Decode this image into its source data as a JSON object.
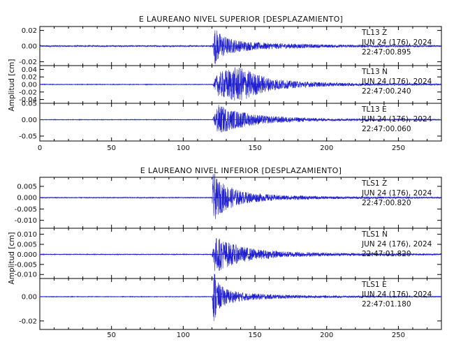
{
  "chart_data": [
    {
      "type": "line",
      "title": "E LAUREANO NIVEL SUPERIOR [DESPLAZAMIENTO]",
      "ylabel": "Amplitud [cm]",
      "xlabel": "",
      "xlim": [
        0,
        280
      ],
      "x_ticks": [
        "0",
        "50",
        "100",
        "150",
        "200",
        "250"
      ],
      "grid": false,
      "line_color": "#1f1fd0",
      "series": [
        {
          "name": "TL13 Z",
          "station": "TL13",
          "component": "Z",
          "date": "JUN 24 (176), 2024",
          "time": "22:47:00.895",
          "ylim": [
            -0.025,
            0.025
          ],
          "y_ticks": [
            "0.02",
            "0.00",
            "-0.02"
          ],
          "envelope": [
            [
              0,
              0.001
            ],
            [
              120.5,
              0.001
            ],
            [
              122,
              0.024
            ],
            [
              126,
              0.016
            ],
            [
              132,
              0.01
            ],
            [
              140,
              0.007
            ],
            [
              150,
              0.005
            ],
            [
              160,
              0.004
            ],
            [
              180,
              0.003
            ],
            [
              200,
              0.002
            ],
            [
              280,
              0.001
            ]
          ]
        },
        {
          "name": "TL13 N",
          "station": "TL13",
          "component": "N",
          "date": "JUN 24 (176), 2024",
          "time": "22:47:00.240",
          "ylim": [
            -0.05,
            0.05
          ],
          "y_ticks": [
            "0.04",
            "0.02",
            "0.00",
            "-0.02",
            "-0.04"
          ],
          "envelope": [
            [
              0,
              0.001
            ],
            [
              120.5,
              0.001
            ],
            [
              124,
              0.03
            ],
            [
              130,
              0.04
            ],
            [
              136,
              0.046
            ],
            [
              142,
              0.044
            ],
            [
              150,
              0.03
            ],
            [
              160,
              0.018
            ],
            [
              175,
              0.01
            ],
            [
              190,
              0.007
            ],
            [
              205,
              0.005
            ],
            [
              230,
              0.003
            ],
            [
              280,
              0.002
            ]
          ]
        },
        {
          "name": "TL13 E",
          "station": "TL13",
          "component": "E",
          "date": "JUN 24 (176), 2024",
          "time": "22:47:00.060",
          "ylim": [
            -0.065,
            0.05
          ],
          "y_ticks": [
            "0.05",
            "0.00",
            "-0.05"
          ],
          "envelope": [
            [
              0,
              0.001
            ],
            [
              120.5,
              0.001
            ],
            [
              124,
              0.048
            ],
            [
              128,
              0.04
            ],
            [
              134,
              0.03
            ],
            [
              140,
              0.025
            ],
            [
              148,
              0.018
            ],
            [
              158,
              0.012
            ],
            [
              175,
              0.008
            ],
            [
              200,
              0.004
            ],
            [
              280,
              0.002
            ]
          ]
        }
      ]
    },
    {
      "type": "line",
      "title": "E LAUREANO NIVEL INFERIOR [DESPLAZAMIENTO]",
      "ylabel": "Amplitud [cm]",
      "xlabel": "",
      "xlim": [
        0,
        280
      ],
      "x_ticks": [
        "50",
        "100",
        "150",
        "200",
        "250"
      ],
      "grid": false,
      "line_color": "#1f1fd0",
      "series": [
        {
          "name": "TLS1 Z",
          "station": "TLS1",
          "component": "Z",
          "date": "JUN 24 (176), 2024",
          "time": "22:47:00.820",
          "ylim": [
            -0.0135,
            0.009
          ],
          "y_ticks": [
            "0.005",
            "0.000",
            "-0.005",
            "-0.010"
          ],
          "envelope": [
            [
              0,
              0.0002
            ],
            [
              120,
              0.0002
            ],
            [
              121,
              0.0125
            ],
            [
              123,
              0.0085
            ],
            [
              126,
              0.007
            ],
            [
              132,
              0.005
            ],
            [
              140,
              0.003
            ],
            [
              150,
              0.002
            ],
            [
              165,
              0.0012
            ],
            [
              200,
              0.0006
            ],
            [
              280,
              0.0003
            ]
          ]
        },
        {
          "name": "TLS1 N",
          "station": "TLS1",
          "component": "N",
          "date": "JUN 24 (176), 2024",
          "time": "22:47:01.820",
          "ylim": [
            -0.012,
            0.013
          ],
          "y_ticks": [
            "0.010",
            "0.005",
            "0.000",
            "-0.005",
            "-0.010"
          ],
          "envelope": [
            [
              0,
              0.0002
            ],
            [
              120,
              0.0002
            ],
            [
              122,
              0.009
            ],
            [
              126,
              0.008
            ],
            [
              132,
              0.006
            ],
            [
              140,
              0.004
            ],
            [
              152,
              0.0025
            ],
            [
              170,
              0.0015
            ],
            [
              200,
              0.0008
            ],
            [
              280,
              0.0004
            ]
          ]
        },
        {
          "name": "TLS1 E",
          "station": "TLS1",
          "component": "E",
          "date": "JUN 24 (176), 2024",
          "time": "22:47:01.180",
          "ylim": [
            -0.027,
            0.015
          ],
          "y_ticks": [
            "0.00",
            "-0.02"
          ],
          "envelope": [
            [
              0,
              0.0003
            ],
            [
              120,
              0.0003
            ],
            [
              121.5,
              0.024
            ],
            [
              124,
              0.012
            ],
            [
              128,
              0.008
            ],
            [
              134,
              0.005
            ],
            [
              145,
              0.003
            ],
            [
              160,
              0.002
            ],
            [
              190,
              0.001
            ],
            [
              280,
              0.0004
            ]
          ]
        }
      ]
    }
  ]
}
